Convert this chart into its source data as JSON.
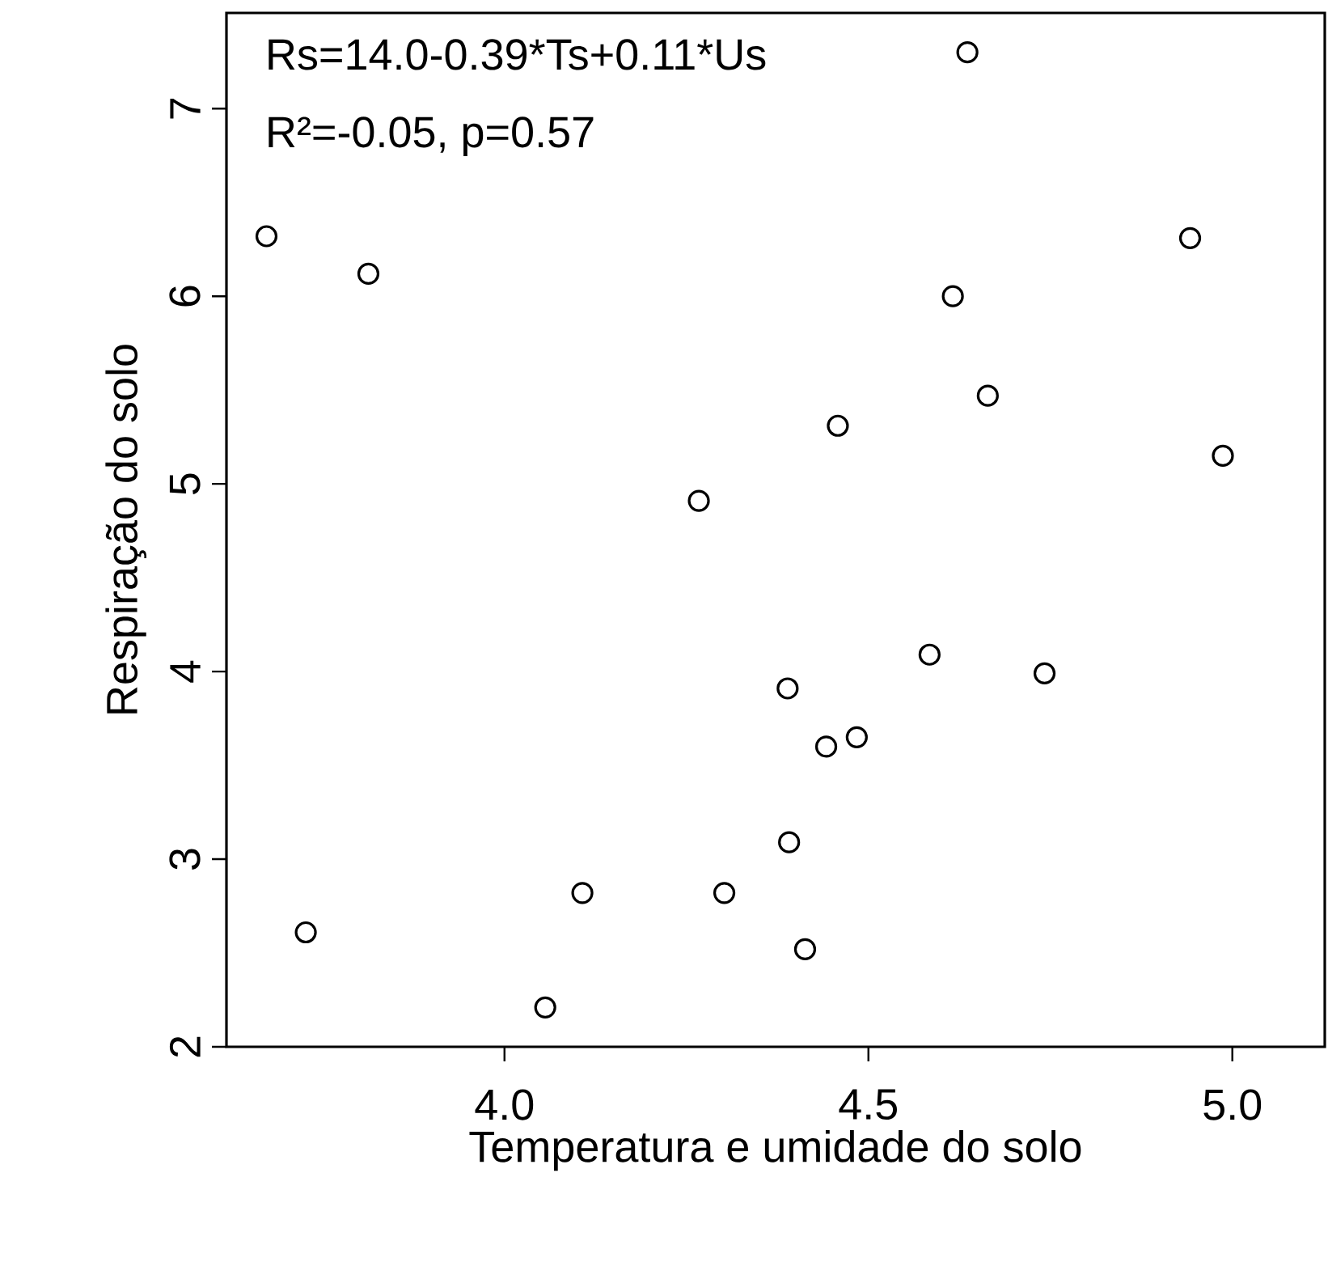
{
  "chart_data": {
    "type": "scatter",
    "xlabel": "Temperatura e umidade do solo",
    "ylabel": "Respiração do solo",
    "annotations": [
      "Rs=14.0-0.39*Ts+0.11*Us",
      "R²=-0.05, p=0.57"
    ],
    "x": [
      3.673,
      3.813,
      3.727,
      4.056,
      4.107,
      4.267,
      4.302,
      4.389,
      4.391,
      4.413,
      4.442,
      4.484,
      4.458,
      4.584,
      4.616,
      4.636,
      4.664,
      4.742,
      4.942,
      4.987
    ],
    "values": [
      6.32,
      6.12,
      2.61,
      2.21,
      2.82,
      4.91,
      2.82,
      3.91,
      3.09,
      2.52,
      3.6,
      3.65,
      5.31,
      4.09,
      6.0,
      7.3,
      5.47,
      3.99,
      6.31,
      5.15
    ],
    "color": "#000000",
    "marker": "circle",
    "xlim": [
      3.618,
      5.127
    ],
    "ylim": [
      2.0,
      7.51
    ],
    "xticks": [
      {
        "value": 4.0,
        "label": "4.0"
      },
      {
        "value": 4.5,
        "label": "4.5"
      },
      {
        "value": 5.0,
        "label": "5.0"
      }
    ],
    "yticks": [
      2,
      3,
      4,
      5,
      6,
      7
    ]
  }
}
